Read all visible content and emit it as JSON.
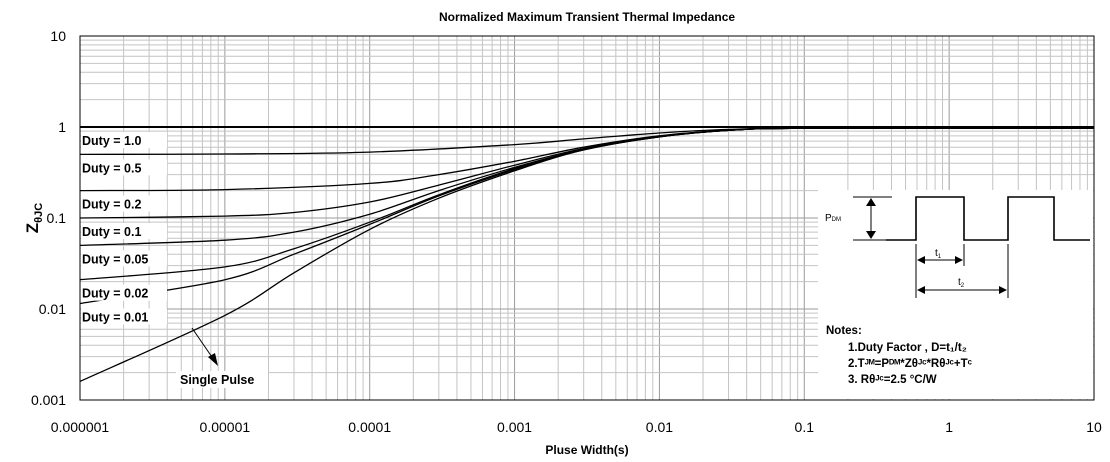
{
  "chart_data": {
    "type": "line",
    "title": "Normalized Maximum Transient Thermal Impedance",
    "xlabel": "Pluse Width(s)",
    "ylabel_main": "Z",
    "ylabel_sub": "θJC",
    "x_scale": "log",
    "y_scale": "log",
    "xlim": [
      1e-06,
      10
    ],
    "ylim": [
      0.001,
      10
    ],
    "grid": true,
    "x_ticks": [
      "0.000001",
      "0.00001",
      "0.0001",
      "0.001",
      "0.01",
      "0.1",
      "1",
      "10"
    ],
    "y_ticks": [
      "0.001",
      "0.01",
      "0.1",
      "1",
      "10"
    ],
    "series": [
      {
        "name": "Duty = 1.0",
        "x": [
          1e-06,
          10
        ],
        "y": [
          1.0,
          1.0
        ]
      },
      {
        "name": "Duty = 0.5",
        "x": [
          1e-06,
          1e-05,
          0.0001,
          0.001,
          0.003,
          0.01,
          0.03,
          0.1,
          10
        ],
        "y": [
          0.5,
          0.505,
          0.53,
          0.64,
          0.74,
          0.86,
          0.94,
          0.97,
          0.97
        ]
      },
      {
        "name": "Duty = 0.2",
        "x": [
          1e-06,
          1e-05,
          0.0001,
          0.0003,
          0.001,
          0.003,
          0.01,
          0.03,
          0.1,
          10
        ],
        "y": [
          0.2,
          0.205,
          0.24,
          0.3,
          0.42,
          0.6,
          0.8,
          0.92,
          0.97,
          0.97
        ]
      },
      {
        "name": "Duty = 0.1",
        "x": [
          1e-06,
          1e-05,
          3e-05,
          0.0001,
          0.0003,
          0.001,
          0.003,
          0.01,
          0.03,
          0.1,
          10
        ],
        "y": [
          0.1,
          0.105,
          0.115,
          0.15,
          0.23,
          0.38,
          0.58,
          0.79,
          0.92,
          0.97,
          0.97
        ]
      },
      {
        "name": "Duty = 0.05",
        "x": [
          1e-06,
          1e-05,
          3e-05,
          0.0001,
          0.0003,
          0.001,
          0.003,
          0.01,
          0.03,
          0.1,
          10
        ],
        "y": [
          0.05,
          0.057,
          0.07,
          0.11,
          0.2,
          0.36,
          0.57,
          0.79,
          0.92,
          0.97,
          0.97
        ]
      },
      {
        "name": "Duty = 0.02",
        "x": [
          1e-06,
          1e-05,
          3e-05,
          0.0001,
          0.0003,
          0.001,
          0.003,
          0.01,
          0.03,
          0.1,
          10
        ],
        "y": [
          0.021,
          0.029,
          0.046,
          0.09,
          0.18,
          0.35,
          0.57,
          0.78,
          0.92,
          0.97,
          0.97
        ]
      },
      {
        "name": "Duty = 0.01",
        "x": [
          1e-06,
          1e-05,
          3e-05,
          0.0001,
          0.0003,
          0.001,
          0.003,
          0.01,
          0.03,
          0.1,
          10
        ],
        "y": [
          0.0115,
          0.021,
          0.04,
          0.085,
          0.175,
          0.34,
          0.56,
          0.78,
          0.92,
          0.97,
          0.97
        ]
      },
      {
        "name": "Single Pulse",
        "x": [
          1e-06,
          1e-05,
          3e-05,
          0.0001,
          0.0003,
          0.001,
          0.003,
          0.01,
          0.03,
          0.1,
          10
        ],
        "y": [
          0.0016,
          0.0085,
          0.025,
          0.075,
          0.165,
          0.33,
          0.56,
          0.78,
          0.92,
          0.97,
          0.97
        ]
      }
    ],
    "single_pulse_label": "Single Pulse",
    "inset": {
      "pdm_label": "P",
      "pdm_sub": "DM",
      "t1_label": "t",
      "t1_sub": "1",
      "t2_label": "t",
      "t2_sub": "2"
    },
    "notes": {
      "heading": "Notes:",
      "line1": "1.Duty Factor , D=t₁/t₂",
      "line2": "2.Tᴶᴹ=Pᴰᴹ*Zθᴶᶜ*Rθᴶᶜ+Tᶜ",
      "line3": "3. Rθᴶᶜ=2.5 °C/W"
    }
  }
}
